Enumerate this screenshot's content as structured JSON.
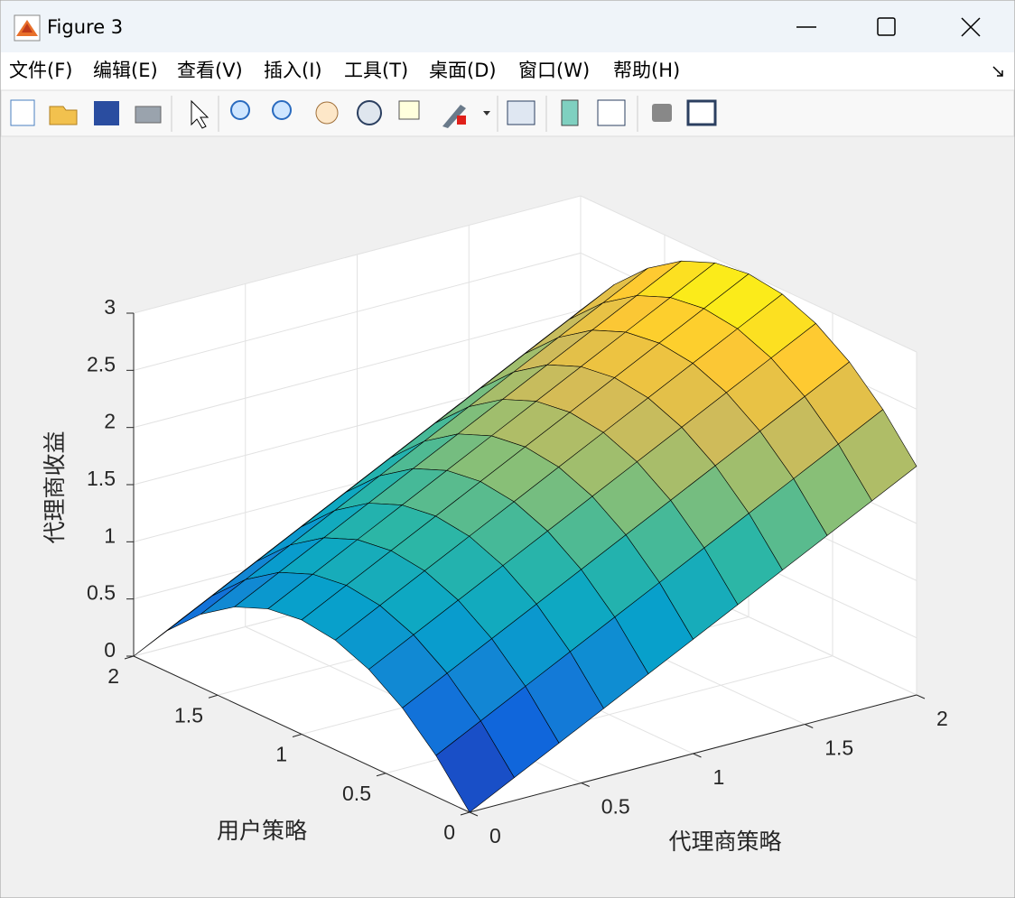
{
  "window": {
    "title": "Figure 3",
    "menu": [
      "文件(F)",
      "编辑(E)",
      "查看(V)",
      "插入(I)",
      "工具(T)",
      "桌面(D)",
      "窗口(W)",
      "帮助(H)"
    ]
  },
  "chart_data": {
    "type": "surface",
    "xlabel": "代理商策略",
    "ylabel": "用户策略",
    "zlabel": "代理商收益",
    "x": [
      0,
      0.2,
      0.4,
      0.6,
      0.8,
      1,
      1.2,
      1.4,
      1.6,
      1.8,
      2
    ],
    "y": [
      0,
      0.2,
      0.4,
      0.6,
      0.8,
      1,
      1.2,
      1.4,
      1.6,
      1.8,
      2
    ],
    "z": [
      [
        0,
        0.2,
        0.4,
        0.6,
        0.8,
        1,
        1.2,
        1.4,
        1.6,
        1.8,
        2
      ],
      [
        0.36,
        0.56,
        0.76,
        0.96,
        1.16,
        1.36,
        1.56,
        1.76,
        1.96,
        2.16,
        2.36
      ],
      [
        0.64,
        0.84,
        1.04,
        1.24,
        1.44,
        1.64,
        1.84,
        2.04,
        2.24,
        2.44,
        2.64
      ],
      [
        0.84,
        1.04,
        1.24,
        1.44,
        1.64,
        1.84,
        2.04,
        2.24,
        2.44,
        2.64,
        2.84
      ],
      [
        0.96,
        1.16,
        1.36,
        1.56,
        1.76,
        1.96,
        2.16,
        2.36,
        2.56,
        2.76,
        2.96
      ],
      [
        1,
        1.2,
        1.4,
        1.6,
        1.8,
        2,
        2.2,
        2.4,
        2.6,
        2.8,
        3
      ],
      [
        0.96,
        1.16,
        1.36,
        1.56,
        1.76,
        1.96,
        2.16,
        2.36,
        2.56,
        2.76,
        2.96
      ],
      [
        0.84,
        1.04,
        1.24,
        1.44,
        1.64,
        1.84,
        2.04,
        2.24,
        2.44,
        2.64,
        2.84
      ],
      [
        0.64,
        0.84,
        1.04,
        1.24,
        1.44,
        1.64,
        1.84,
        2.04,
        2.24,
        2.44,
        2.64
      ],
      [
        0.36,
        0.56,
        0.76,
        0.96,
        1.16,
        1.36,
        1.56,
        1.76,
        1.96,
        2.16,
        2.36
      ],
      [
        0,
        0.2,
        0.4,
        0.6,
        0.8,
        1,
        1.2,
        1.4,
        1.6,
        1.8,
        2
      ]
    ],
    "xlim": [
      0,
      2
    ],
    "xticks": [
      0,
      0.5,
      1,
      1.5,
      2
    ],
    "ylim": [
      0,
      2
    ],
    "yticks": [
      0,
      0.5,
      1,
      1.5,
      2
    ],
    "zlim": [
      0,
      3
    ],
    "zticks": [
      0,
      0.5,
      1,
      1.5,
      2,
      2.5,
      3
    ],
    "grid": true,
    "edgecolor": "#000000",
    "colormap": [
      "#352a87",
      "#0f5cdd",
      "#1481d6",
      "#06a4ca",
      "#2eb7a4",
      "#87bf77",
      "#d1bb59",
      "#fec832",
      "#f9fb0e"
    ]
  }
}
